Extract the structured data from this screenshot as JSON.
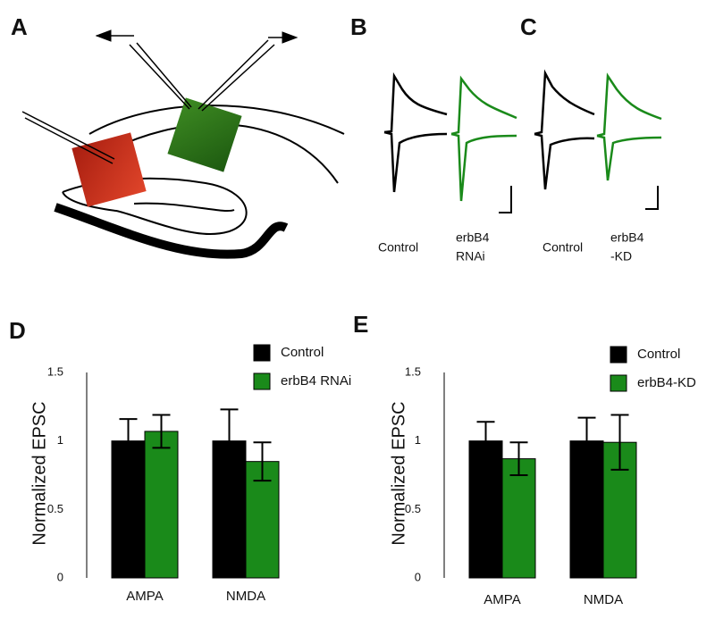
{
  "panel_labels": [
    "A",
    "B",
    "C",
    "D",
    "E"
  ],
  "panel_b": {
    "labels": [
      "Control",
      "erbB4",
      "RNAi"
    ]
  },
  "panel_c": {
    "labels": [
      "Control",
      "erbB4",
      "-KD"
    ]
  },
  "chart_data": [
    {
      "type": "bar",
      "y_label": "Normalized EPSC",
      "categories": [
        "AMPA",
        "NMDA"
      ],
      "series": [
        {
          "name": "Control",
          "color": "#000000",
          "values": [
            1,
            1
          ],
          "errors": [
            0.16,
            0.23
          ]
        },
        {
          "name": "erbB4 RNAi",
          "color": "#1a8a1a",
          "values": [
            1.07,
            0.85
          ],
          "errors": [
            0.12,
            0.14
          ]
        }
      ],
      "ylim": [
        0,
        1.5
      ],
      "yticks": [
        0,
        0.5,
        1,
        1.5
      ]
    },
    {
      "type": "bar",
      "y_label": "Normalized EPSC",
      "categories": [
        "AMPA",
        "NMDA"
      ],
      "series": [
        {
          "name": "Control",
          "color": "#000000",
          "values": [
            1,
            1
          ],
          "errors": [
            0.14,
            0.17
          ]
        },
        {
          "name": "erbB4-KD",
          "color": "#1a8a1a",
          "values": [
            0.87,
            0.99
          ],
          "errors": [
            0.12,
            0.2
          ]
        }
      ],
      "ylim": [
        0,
        1.5
      ],
      "yticks": [
        0,
        0.5,
        1,
        1.5
      ]
    }
  ]
}
